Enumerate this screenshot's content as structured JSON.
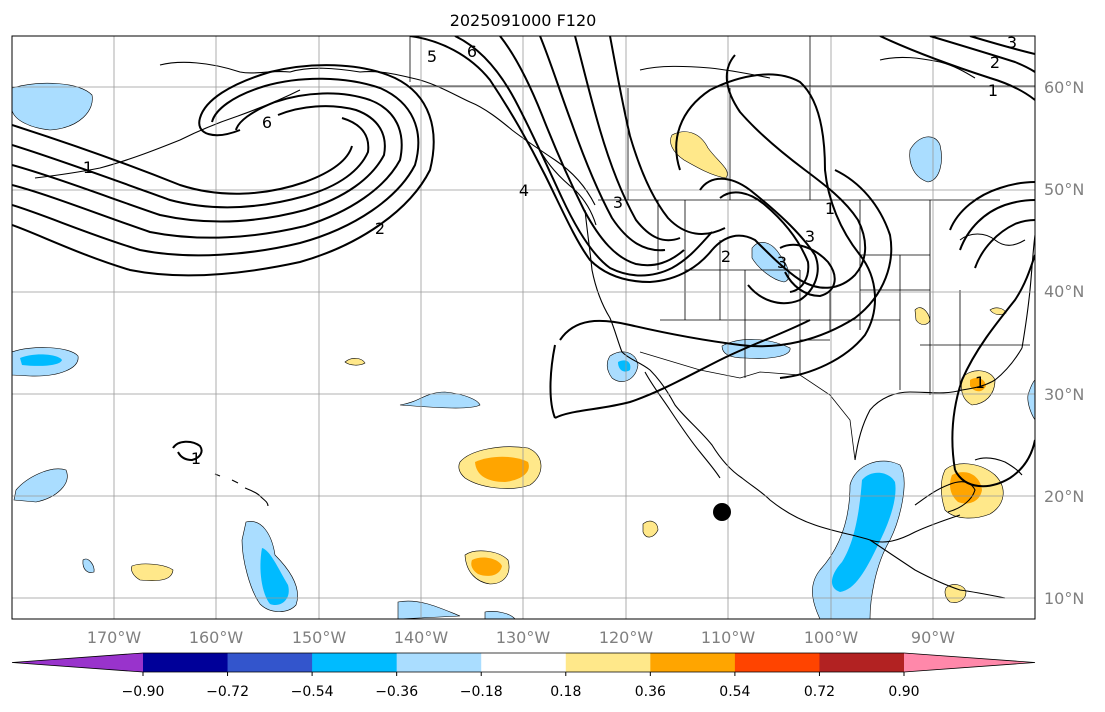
{
  "title": "2025091000 F120",
  "map": {
    "lat_labels": [
      "60°N",
      "50°N",
      "40°N",
      "30°N",
      "20°N",
      "10°N"
    ],
    "lon_labels": [
      "170°W",
      "160°W",
      "150°W",
      "140°W",
      "130°W",
      "120°W",
      "110°W",
      "100°W",
      "90°W"
    ],
    "contour_labels": [
      "6",
      "5",
      "6",
      "4",
      "3",
      "2",
      "1",
      "3",
      "3",
      "2",
      "1",
      "2",
      "3",
      "1",
      "1",
      "1"
    ]
  },
  "colorbar": {
    "colors": [
      "#9933cc",
      "#000099",
      "#3355cc",
      "#00bbff",
      "#aaddff",
      "#ffffff",
      "#ffe88a",
      "#ffa500",
      "#ff4400",
      "#b22222",
      "#ff88aa"
    ],
    "tick_labels": [
      "−0.90",
      "−0.72",
      "−0.54",
      "−0.36",
      "−0.18",
      "0.18",
      "0.36",
      "0.54",
      "0.72",
      "0.90"
    ]
  }
}
